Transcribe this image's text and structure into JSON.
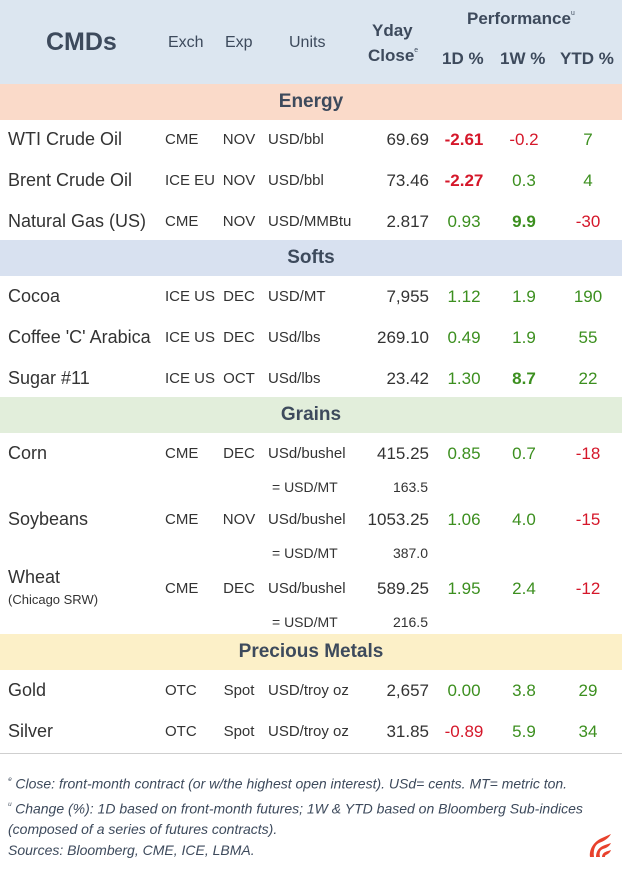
{
  "header": {
    "title": "CMDs",
    "exch": "Exch",
    "exp": "Exp",
    "units": "Units",
    "yday_line1": "Yday",
    "yday_line2": "Close",
    "yday_mark": "ᵉ",
    "performance": "Performance",
    "performance_mark": "ᵘ",
    "d1": "1D %",
    "w1": "1W %",
    "ytd": "YTD %"
  },
  "sections": {
    "energy": "Energy",
    "softs": "Softs",
    "grains": "Grains",
    "metals": "Precious Metals"
  },
  "colors": {
    "header_bg": "#dce6f0",
    "energy_bg": "#fadac9",
    "softs_bg": "#d8e1f0",
    "grains_bg": "#e2eedb",
    "metals_bg": "#fcf0c8",
    "positive": "#3c8f1f",
    "negative": "#d5172a"
  },
  "rows": {
    "wti": {
      "name": "WTI Crude Oil",
      "exch": "CME",
      "exp": "NOV",
      "units": "USD/bbl",
      "yday": "69.69",
      "d1": "-2.61",
      "w1": "-0.2",
      "ytd": "7"
    },
    "brent": {
      "name": "Brent Crude Oil",
      "exch": "ICE EU",
      "exp": "NOV",
      "units": "USD/bbl",
      "yday": "73.46",
      "d1": "-2.27",
      "w1": "0.3",
      "ytd": "4"
    },
    "natgas": {
      "name": "Natural Gas (US)",
      "exch": "CME",
      "exp": "NOV",
      "units": "USD/MMBtu",
      "yday": "2.817",
      "d1": "0.93",
      "w1": "9.9",
      "ytd": "-30"
    },
    "cocoa": {
      "name": "Cocoa",
      "exch": "ICE US",
      "exp": "DEC",
      "units": "USD/MT",
      "yday": "7,955",
      "d1": "1.12",
      "w1": "1.9",
      "ytd": "190"
    },
    "coffee": {
      "name": "Coffee 'C' Arabica",
      "exch": "ICE US",
      "exp": "DEC",
      "units": "USd/lbs",
      "yday": "269.10",
      "d1": "0.49",
      "w1": "1.9",
      "ytd": "55"
    },
    "sugar": {
      "name": "Sugar #11",
      "exch": "ICE US",
      "exp": "OCT",
      "units": "USd/lbs",
      "yday": "23.42",
      "d1": "1.30",
      "w1": "8.7",
      "ytd": "22"
    },
    "corn": {
      "name": "Corn",
      "exch": "CME",
      "exp": "DEC",
      "units": "USd/bushel",
      "yday": "415.25",
      "d1": "0.85",
      "w1": "0.7",
      "ytd": "-18",
      "conv_units": "= USD/MT",
      "conv_value": "163.5"
    },
    "soybeans": {
      "name": "Soybeans",
      "exch": "CME",
      "exp": "NOV",
      "units": "USd/bushel",
      "yday": "1053.25",
      "d1": "1.06",
      "w1": "4.0",
      "ytd": "-15",
      "conv_units": "= USD/MT",
      "conv_value": "387.0"
    },
    "wheat": {
      "name": "Wheat",
      "subname": "(Chicago SRW)",
      "exch": "CME",
      "exp": "DEC",
      "units": "USd/bushel",
      "yday": "589.25",
      "d1": "1.95",
      "w1": "2.4",
      "ytd": "-12",
      "conv_units": "= USD/MT",
      "conv_value": "216.5"
    },
    "gold": {
      "name": "Gold",
      "exch": "OTC",
      "exp": "Spot",
      "units": "USD/troy oz",
      "yday": "2,657",
      "d1": "0.00",
      "w1": "3.8",
      "ytd": "29"
    },
    "silver": {
      "name": "Silver",
      "exch": "OTC",
      "exp": "Spot",
      "units": "USD/troy oz",
      "yday": "31.85",
      "d1": "-0.89",
      "w1": "5.9",
      "ytd": "34"
    }
  },
  "notes": {
    "n1_mark": "ᵉ",
    "n1": "Close: front-month contract (or w/the highest open interest). USd= cents. MT= metric ton.",
    "n2_mark": "ᵘ",
    "n2": "Change (%): 1D based on front-month futures; 1W & YTD based on Bloomberg Sub-indices (composed of a series of futures contracts).",
    "n3": "Sources: Bloomberg, CME, ICE, LBMA."
  },
  "logo_icon": "flame-stripes-icon"
}
